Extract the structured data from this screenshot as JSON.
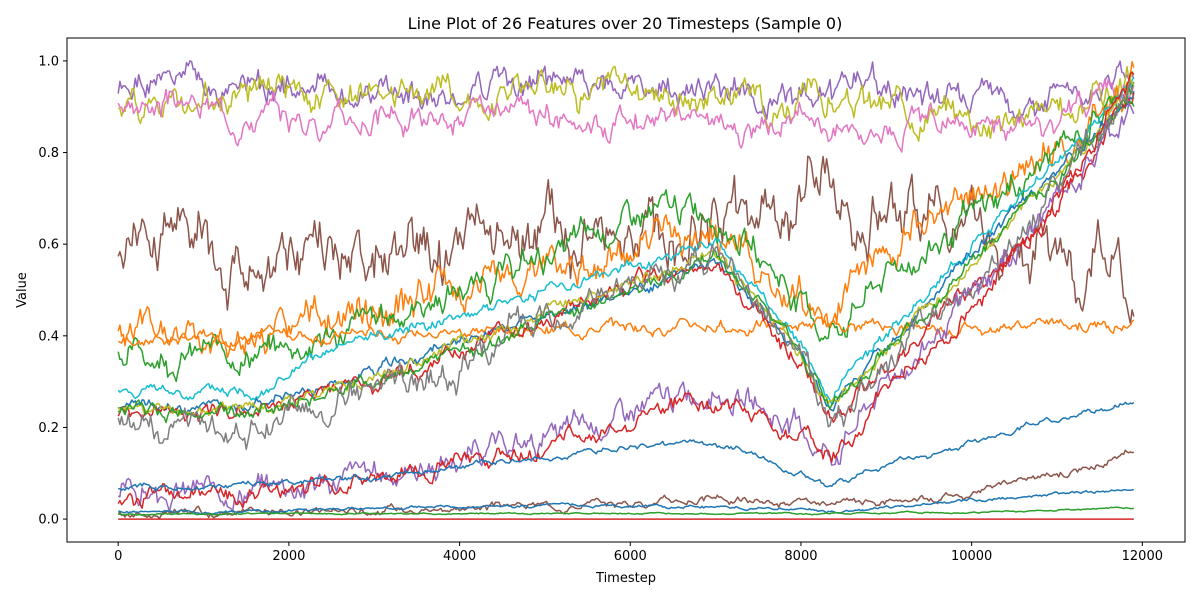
{
  "chart_data": {
    "type": "line",
    "title": "Line Plot of 26 Features over 20 Timesteps (Sample 0)",
    "xlabel": "Timestep",
    "ylabel": "Value",
    "xlim": [
      -600,
      12500
    ],
    "ylim": [
      -0.05,
      1.05
    ],
    "xticks": [
      0,
      2000,
      4000,
      6000,
      8000,
      10000,
      12000
    ],
    "xtick_labels": [
      "0",
      "2000",
      "4000",
      "6000",
      "8000",
      "10000",
      "12000"
    ],
    "yticks": [
      0.0,
      0.2,
      0.4,
      0.6,
      0.8,
      1.0
    ],
    "ytick_labels": [
      "0.0",
      "0.2",
      "0.4",
      "0.6",
      "0.8",
      "1.0"
    ],
    "grid": false,
    "legend": "none",
    "series": [
      {
        "color": "#9467bd",
        "x": [
          0,
          1000,
          2000,
          3000,
          4000,
          5000,
          6000,
          7000,
          8000,
          9000,
          10000,
          11000,
          11900
        ],
        "values": [
          0.93,
          0.94,
          0.94,
          0.93,
          0.93,
          0.94,
          0.93,
          0.93,
          0.92,
          0.93,
          0.92,
          0.92,
          0.95
        ],
        "noise": 0.02,
        "seed": 1
      },
      {
        "color": "#bcbd22",
        "x": [
          0,
          1000,
          2000,
          3000,
          4000,
          5000,
          6000,
          7000,
          8000,
          9000,
          10000,
          11000,
          11900
        ],
        "values": [
          0.91,
          0.93,
          0.93,
          0.92,
          0.92,
          0.96,
          0.94,
          0.93,
          0.92,
          0.9,
          0.89,
          0.88,
          0.97
        ],
        "noise": 0.022,
        "seed": 2
      },
      {
        "color": "#e377c2",
        "x": [
          0,
          1000,
          2000,
          3000,
          4000,
          5000,
          6000,
          7000,
          8000,
          9000,
          10000,
          11000,
          11900
        ],
        "values": [
          0.91,
          0.9,
          0.87,
          0.88,
          0.87,
          0.87,
          0.88,
          0.87,
          0.86,
          0.87,
          0.86,
          0.86,
          0.95
        ],
        "noise": 0.018,
        "seed": 3
      },
      {
        "color": "#8c564b",
        "x": [
          0,
          500,
          1000,
          1100,
          2000,
          3000,
          4000,
          5000,
          6000,
          7000,
          8000,
          9000,
          10000,
          11000,
          11900
        ],
        "values": [
          0.6,
          0.65,
          0.7,
          0.55,
          0.56,
          0.55,
          0.6,
          0.58,
          0.62,
          0.66,
          0.72,
          0.68,
          0.63,
          0.6,
          0.5
        ],
        "noise": 0.04,
        "seed": 4
      },
      {
        "color": "#ff7f0e",
        "x": [
          0,
          1000,
          2000,
          3000,
          4000,
          5000,
          6000,
          7000,
          8000,
          8300,
          9000,
          10000,
          11000,
          11900
        ],
        "values": [
          0.39,
          0.39,
          0.4,
          0.45,
          0.5,
          0.55,
          0.6,
          0.62,
          0.5,
          0.42,
          0.58,
          0.7,
          0.82,
          0.97
        ],
        "noise": 0.025,
        "seed": 5
      },
      {
        "color": "#2ca02c",
        "x": [
          0,
          1000,
          2000,
          3000,
          4000,
          5000,
          6000,
          7000,
          8000,
          8300,
          9000,
          10000,
          11000,
          11900
        ],
        "values": [
          0.36,
          0.36,
          0.37,
          0.43,
          0.5,
          0.57,
          0.65,
          0.68,
          0.48,
          0.4,
          0.53,
          0.65,
          0.8,
          0.95
        ],
        "noise": 0.02,
        "seed": 6
      },
      {
        "color": "#ff7f0e",
        "x": [
          0,
          2000,
          4000,
          6000,
          8000,
          10000,
          11900
        ],
        "values": [
          0.39,
          0.4,
          0.41,
          0.42,
          0.42,
          0.42,
          0.43
        ],
        "noise": 0.008,
        "seed": 7
      },
      {
        "color": "#17becf",
        "x": [
          0,
          1000,
          1600,
          3000,
          4000,
          5000,
          6000,
          7000,
          8000,
          8350,
          9000,
          10000,
          11000,
          11900
        ],
        "values": [
          0.28,
          0.275,
          0.28,
          0.4,
          0.45,
          0.5,
          0.55,
          0.6,
          0.38,
          0.26,
          0.4,
          0.6,
          0.78,
          0.95
        ],
        "noise": 0.008,
        "seed": 8
      },
      {
        "color": "#1f77b4",
        "x": [
          0,
          1000,
          1600,
          3000,
          4000,
          5000,
          6000,
          7000,
          8000,
          8350,
          9000,
          10000,
          11000,
          11900
        ],
        "values": [
          0.245,
          0.245,
          0.25,
          0.32,
          0.38,
          0.44,
          0.5,
          0.56,
          0.36,
          0.24,
          0.38,
          0.58,
          0.76,
          0.94
        ],
        "noise": 0.008,
        "seed": 9
      },
      {
        "color": "#d62728",
        "x": [
          0,
          1000,
          1600,
          3000,
          4000,
          5000,
          6000,
          7000,
          8000,
          8350,
          9000,
          10000,
          11000,
          11900
        ],
        "values": [
          0.235,
          0.235,
          0.24,
          0.3,
          0.37,
          0.43,
          0.5,
          0.56,
          0.34,
          0.23,
          0.33,
          0.5,
          0.7,
          0.93
        ],
        "noise": 0.012,
        "seed": 10
      },
      {
        "color": "#bcbd22",
        "x": [
          0,
          1000,
          1600,
          3000,
          4000,
          5000,
          6000,
          7000,
          8000,
          8350,
          9000,
          10000,
          11000,
          11900
        ],
        "values": [
          0.24,
          0.24,
          0.245,
          0.31,
          0.38,
          0.45,
          0.52,
          0.58,
          0.36,
          0.25,
          0.37,
          0.56,
          0.75,
          0.95
        ],
        "noise": 0.008,
        "seed": 11
      },
      {
        "color": "#2ca02c",
        "x": [
          0,
          1000,
          1600,
          3000,
          4000,
          5000,
          6000,
          7000,
          8000,
          8350,
          9000,
          10000,
          11000,
          11900
        ],
        "values": [
          0.235,
          0.235,
          0.24,
          0.3,
          0.36,
          0.43,
          0.5,
          0.57,
          0.35,
          0.24,
          0.36,
          0.55,
          0.74,
          0.93
        ],
        "noise": 0.01,
        "seed": 12
      },
      {
        "color": "#7f7f7f",
        "x": [
          0,
          1000,
          1600,
          3000,
          4000,
          5000,
          6000,
          7000,
          8000,
          8350,
          9000,
          10000,
          11000,
          11900
        ],
        "values": [
          0.21,
          0.21,
          0.215,
          0.27,
          0.33,
          0.42,
          0.5,
          0.56,
          0.36,
          0.21,
          0.32,
          0.5,
          0.7,
          0.92
        ],
        "noise": 0.02,
        "seed": 13
      },
      {
        "color": "#9467bd",
        "x": [
          0,
          1000,
          2000,
          3000,
          4000,
          5000,
          6000,
          7000,
          8000,
          8350,
          9000,
          10000,
          11000,
          11900
        ],
        "values": [
          0.05,
          0.06,
          0.075,
          0.1,
          0.13,
          0.17,
          0.23,
          0.29,
          0.19,
          0.14,
          0.3,
          0.48,
          0.7,
          0.9
        ],
        "noise": 0.018,
        "seed": 14
      },
      {
        "color": "#d62728",
        "x": [
          0,
          1000,
          2000,
          3000,
          4000,
          5000,
          6000,
          7000,
          8000,
          8350,
          9000,
          10000,
          11000,
          11900
        ],
        "values": [
          0.04,
          0.05,
          0.07,
          0.09,
          0.12,
          0.16,
          0.22,
          0.27,
          0.18,
          0.13,
          0.28,
          0.46,
          0.68,
          0.97
        ],
        "noise": 0.012,
        "seed": 15
      },
      {
        "color": "#1f77b4",
        "x": [
          0,
          1000,
          2000,
          3000,
          4000,
          5000,
          6000,
          7000,
          8000,
          8350,
          9000,
          10000,
          11000,
          11900
        ],
        "values": [
          0.07,
          0.07,
          0.08,
          0.09,
          0.11,
          0.13,
          0.16,
          0.17,
          0.1,
          0.07,
          0.12,
          0.17,
          0.22,
          0.26
        ],
        "noise": 0.004,
        "seed": 16
      },
      {
        "color": "#8c564b",
        "x": [
          0,
          2000,
          4000,
          6000,
          7000,
          8000,
          8350,
          9000,
          10000,
          11000,
          11900
        ],
        "values": [
          0.01,
          0.015,
          0.025,
          0.035,
          0.045,
          0.03,
          0.025,
          0.04,
          0.06,
          0.1,
          0.14
        ],
        "noise": 0.005,
        "seed": 17
      },
      {
        "color": "#1f77b4",
        "x": [
          0,
          2000,
          4000,
          6000,
          8000,
          8350,
          10000,
          11900
        ],
        "values": [
          0.015,
          0.018,
          0.025,
          0.03,
          0.02,
          0.015,
          0.04,
          0.065
        ],
        "noise": 0.002,
        "seed": 18
      },
      {
        "color": "#2ca02c",
        "x": [
          0,
          2000,
          4000,
          6000,
          8000,
          10000,
          11900
        ],
        "values": [
          0.01,
          0.012,
          0.012,
          0.013,
          0.012,
          0.015,
          0.025
        ],
        "noise": 0.001,
        "seed": 19
      },
      {
        "color": "#d62728",
        "x": [
          0,
          11900
        ],
        "values": [
          0.0,
          0.0
        ],
        "noise": 0,
        "seed": 20
      }
    ]
  }
}
